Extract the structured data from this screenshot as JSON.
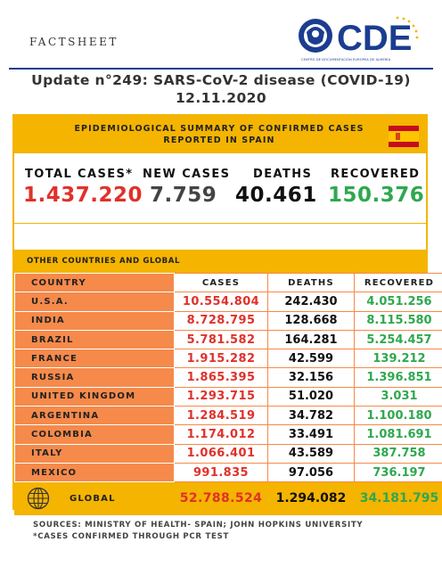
{
  "header": {
    "kicker": "FACTSHEET",
    "logo_text": "CDE",
    "logo_subtitle": "CENTRO DE DOCUMENTACIÓN EUROPEA DE ALMERÍA",
    "title": "Update n°249: SARS-CoV-2 disease (COVID-19) 12.11.2020"
  },
  "spain": {
    "section_title": "EPIDEMIOLOGICAL SUMMARY OF CONFIRMED CASES REPORTED IN SPAIN",
    "total_cases_label": "TOTAL CASES*",
    "total_cases": "1.437.220",
    "new_cases_label": "NEW CASES",
    "new_cases": "7.759",
    "deaths_label": "DEATHS",
    "deaths": "40.461",
    "recovered_label": "RECOVERED",
    "recovered": "150.376"
  },
  "global_section": {
    "title": "OTHER COUNTRIES AND GLOBAL",
    "columns": [
      "COUNTRY",
      "CASES",
      "DEATHS",
      "RECOVERED"
    ],
    "rows": [
      {
        "country": "U.S.A.",
        "cases": "10.554.804",
        "deaths": "242.430",
        "recovered": "4.051.256"
      },
      {
        "country": "INDIA",
        "cases": "8.728.795",
        "deaths": "128.668",
        "recovered": "8.115.580"
      },
      {
        "country": "BRAZIL",
        "cases": "5.781.582",
        "deaths": "164.281",
        "recovered": "5.254.457"
      },
      {
        "country": "FRANCE",
        "cases": "1.915.282",
        "deaths": "42.599",
        "recovered": "139.212"
      },
      {
        "country": "RUSSIA",
        "cases": "1.865.395",
        "deaths": "32.156",
        "recovered": "1.396.851"
      },
      {
        "country": "UNITED KINGDOM",
        "cases": "1.293.715",
        "deaths": "51.020",
        "recovered": "3.031"
      },
      {
        "country": "ARGENTINA",
        "cases": "1.284.519",
        "deaths": "34.782",
        "recovered": "1.100.180"
      },
      {
        "country": "COLOMBIA",
        "cases": "1.174.012",
        "deaths": "33.491",
        "recovered": "1.081.691"
      },
      {
        "country": "ITALY",
        "cases": "1.066.401",
        "deaths": "43.589",
        "recovered": "387.758"
      },
      {
        "country": "MEXICO",
        "cases": "991.835",
        "deaths": "97.056",
        "recovered": "736.197"
      }
    ],
    "global": {
      "label": "GLOBAL",
      "cases": "52.788.524",
      "deaths": "1.294.082",
      "recovered": "34.181.795"
    }
  },
  "footer": {
    "sources": "SOURCES: MINISTRY OF HEALTH- SPAIN; JOHN HOPKINS UNIVERSITY",
    "note": "*CASES CONFIRMED THROUGH PCR TEST"
  },
  "colors": {
    "accent_yellow": "#f4b400",
    "country_orange": "#f58a4b",
    "cases_red": "#e0312a",
    "recovered_green": "#2fa84f",
    "logo_blue": "#1a3d8f"
  },
  "icons": [
    "cde-logo",
    "spain-flag-icon",
    "globe-icon"
  ]
}
